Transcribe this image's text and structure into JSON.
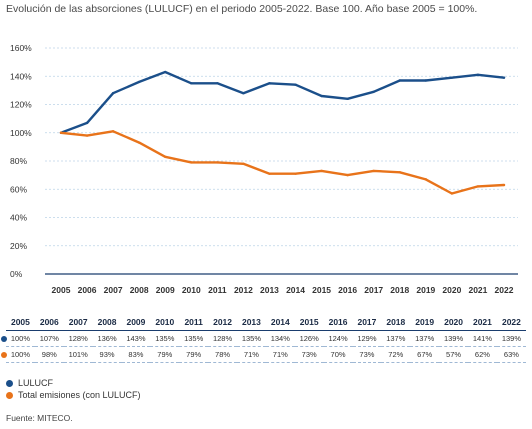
{
  "title": "Evolución de las absorciones (LULUCF) en el periodo 2005-2022. Base 100. Año base 2005 = 100%.",
  "chart_data": {
    "type": "line",
    "x": [
      "2005",
      "2006",
      "2007",
      "2008",
      "2009",
      "2010",
      "2011",
      "2012",
      "2013",
      "2014",
      "2015",
      "2016",
      "2017",
      "2018",
      "2019",
      "2020",
      "2021",
      "2022"
    ],
    "yticks": [
      "0%",
      "20%",
      "40%",
      "60%",
      "80%",
      "100%",
      "120%",
      "140%",
      "160%"
    ],
    "ylim": [
      0,
      160
    ],
    "grid": true,
    "series": [
      {
        "name": "LULUCF",
        "color": "#1b4f8a",
        "values": [
          100,
          107,
          128,
          136,
          143,
          135,
          135,
          128,
          135,
          134,
          126,
          124,
          129,
          137,
          137,
          139,
          141,
          139
        ],
        "labels": [
          "100%",
          "107%",
          "128%",
          "136%",
          "143%",
          "135%",
          "135%",
          "128%",
          "135%",
          "134%",
          "126%",
          "124%",
          "129%",
          "137%",
          "137%",
          "139%",
          "141%",
          "139%"
        ]
      },
      {
        "name": "Total emisiones (con LULUCF)",
        "color": "#e8731a",
        "values": [
          100,
          98,
          101,
          93,
          83,
          79,
          79,
          78,
          71,
          71,
          73,
          70,
          73,
          72,
          67,
          57,
          62,
          63
        ],
        "labels": [
          "100%",
          "98%",
          "101%",
          "93%",
          "83%",
          "79%",
          "79%",
          "78%",
          "71%",
          "71%",
          "73%",
          "70%",
          "73%",
          "72%",
          "67%",
          "57%",
          "62%",
          "63%"
        ]
      }
    ]
  },
  "source": "Fuente: MITECO."
}
